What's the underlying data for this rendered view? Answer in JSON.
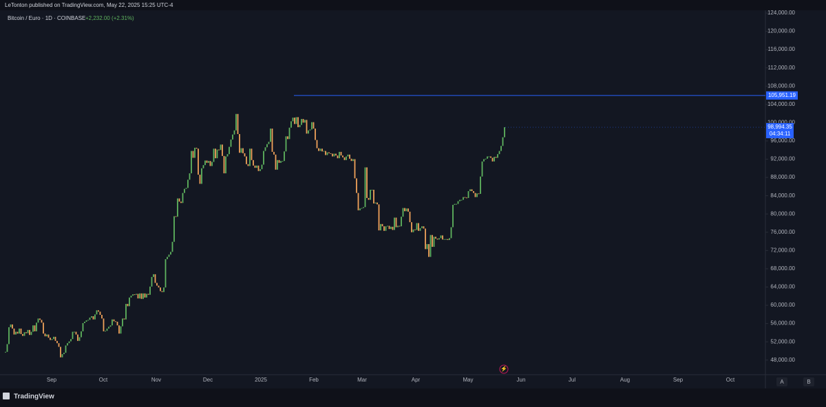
{
  "header": "LeTonton published on TradingView.com, May 22, 2025 15:25 UTC-4",
  "footer": "TradingView",
  "buttons": [
    "A",
    "B"
  ],
  "chart_data": {
    "type": "candlestick",
    "title": "Bitcoin / Euro · 1D · COINBASE",
    "change": "+2,232.00 (+2.31%)",
    "up_color": "#5fb35f",
    "down_color": "#f0a25a",
    "x_labels": [
      "Sep",
      "Oct",
      "Nov",
      "Dec",
      "2025",
      "Feb",
      "Mar",
      "Apr",
      "May",
      "Jun",
      "Jul",
      "Aug",
      "Sep",
      "Oct"
    ],
    "ylim": [
      44800,
      124600
    ],
    "yticks": [
      {
        "value": 48000,
        "label": "48,000.00"
      },
      {
        "value": 52000,
        "label": "52,000.00"
      },
      {
        "value": 56000,
        "label": "56,000.00"
      },
      {
        "value": 60000,
        "label": "60,000.00"
      },
      {
        "value": 64000,
        "label": "64,000.00"
      },
      {
        "value": 68000,
        "label": "68,000.00"
      },
      {
        "value": 72000,
        "label": "72,000.00"
      },
      {
        "value": 76000,
        "label": "76,000.00"
      },
      {
        "value": 80000,
        "label": "80,000.00"
      },
      {
        "value": 84000,
        "label": "84,000.00"
      },
      {
        "value": 88000,
        "label": "88,000.00"
      },
      {
        "value": 92000,
        "label": "92,000.00"
      },
      {
        "value": 96000,
        "label": "96,000.00"
      },
      {
        "value": 100000,
        "label": "100,000.00"
      },
      {
        "value": 104000,
        "label": "104,000.00"
      },
      {
        "value": 108000,
        "label": "108,000.00"
      },
      {
        "value": 112000,
        "label": "112,000.00"
      },
      {
        "value": 116000,
        "label": "116,000.00"
      },
      {
        "value": 120000,
        "label": "120,000.00"
      },
      {
        "value": 124000,
        "label": "124,000.00"
      }
    ],
    "hline": {
      "value": 105951.19,
      "label": "105,951.19",
      "color": "#2962ff"
    },
    "last_price": {
      "value": 98994.35,
      "label": "98,994.35",
      "countdown": "04:34:11",
      "color": "#2962ff"
    },
    "close": [
      49800,
      51500,
      55200,
      55800,
      54900,
      53600,
      54200,
      53800,
      54900,
      53700,
      53300,
      54100,
      53900,
      54600,
      53500,
      54200,
      55600,
      54300,
      56200,
      57100,
      56800,
      56200,
      53800,
      53200,
      53600,
      52900,
      52400,
      52600,
      53100,
      52200,
      51700,
      50900,
      48600,
      49300,
      49600,
      51200,
      51700,
      52100,
      52600,
      54200,
      54200,
      53600,
      52200,
      53000,
      54300,
      56100,
      56400,
      56700,
      56800,
      57300,
      57600,
      56900,
      58000,
      58900,
      58600,
      57900,
      57100,
      54300,
      54400,
      54900,
      55300,
      55600,
      56900,
      56500,
      56400,
      55600,
      53800,
      55400,
      57100,
      56900,
      60300,
      59800,
      61700,
      62100,
      62400,
      62300,
      62500,
      61500,
      62600,
      61400,
      62600,
      61700,
      62500,
      62300,
      64100,
      66200,
      66800,
      64900,
      64300,
      63900,
      63100,
      62900,
      63900,
      70100,
      70600,
      71100,
      71700,
      73900,
      79500,
      79400,
      83400,
      82700,
      82400,
      84600,
      85500,
      85700,
      87500,
      88900,
      93800,
      92300,
      94500,
      94300,
      88600,
      86600,
      90000,
      90700,
      91700,
      91200,
      91600,
      90500,
      91400,
      94300,
      92200,
      94100,
      94000,
      95200,
      92700,
      88900,
      92600,
      93100,
      94700,
      96300,
      97400,
      98300,
      101900,
      97500,
      93400,
      94400,
      93300,
      92600,
      90900,
      90500,
      94300,
      91800,
      90600,
      90100,
      90600,
      89400,
      89800,
      90800,
      93800,
      94600,
      95300,
      95800,
      98700,
      93600,
      93000,
      89700,
      91800,
      91200,
      91600,
      91600,
      93700,
      97000,
      96400,
      98900,
      100300,
      101100,
      99700,
      101200,
      99000,
      99500,
      100800,
      100000,
      100600,
      97600,
      98300,
      98500,
      100100,
      98700,
      96200,
      94400,
      93800,
      94300,
      93700,
      93800,
      92900,
      93500,
      93300,
      93200,
      92600,
      93200,
      92800,
      92200,
      93600,
      92800,
      92400,
      91800,
      92600,
      93000,
      92100,
      91600,
      92000,
      87800,
      84600,
      80800,
      81200,
      81300,
      81500,
      90200,
      83500,
      83100,
      85300,
      85300,
      82300,
      82500,
      82100,
      76400,
      77800,
      77300,
      76300,
      77300,
      77400,
      76700,
      77200,
      76500,
      79200,
      77100,
      77400,
      77300,
      79400,
      81300,
      80600,
      81200,
      80500,
      78200,
      76000,
      76600,
      76500,
      78000,
      76300,
      76900,
      77300,
      76800,
      72300,
      73400,
      70600,
      75400,
      72800,
      75000,
      74600,
      74400,
      74700,
      75300,
      74400,
      74500,
      74500,
      74300,
      74700,
      77100,
      82000,
      82200,
      82200,
      82800,
      83100,
      83100,
      83700,
      83600,
      83500,
      85000,
      85400,
      85000,
      84600,
      83700,
      84500,
      84400,
      88200,
      91500,
      92000,
      92100,
      92600,
      92600,
      92300,
      91500,
      92500,
      92300,
      93100,
      93800,
      94900,
      96800,
      98994.35
    ]
  }
}
